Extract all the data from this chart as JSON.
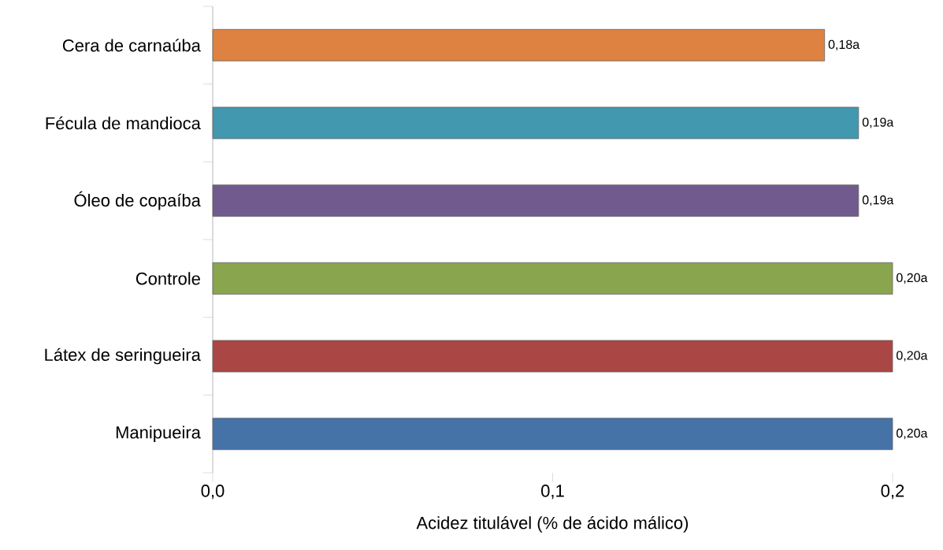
{
  "chart_data": {
    "type": "bar",
    "orientation": "horizontal",
    "categories": [
      "Cera de carnaúba",
      "Fécula de mandioca",
      "Óleo de copaíba",
      "Controle",
      "Látex de seringueira",
      "Manipueira"
    ],
    "values": [
      0.18,
      0.19,
      0.19,
      0.2,
      0.2,
      0.2
    ],
    "value_labels": [
      "0,18a",
      "0,19a",
      "0,19a",
      "0,20a",
      "0,20a",
      "0,20a"
    ],
    "colors": [
      "#dd8240",
      "#4298ae",
      "#715a8d",
      "#89a54e",
      "#aa4644",
      "#4572a7"
    ],
    "xlabel": "Acidez titulável (% de ácido málico)",
    "xlim": [
      0,
      0.2
    ],
    "xticks": [
      {
        "value": 0,
        "label": "0,0"
      },
      {
        "value": 0.1,
        "label": "0,1"
      },
      {
        "value": 0.2,
        "label": "0,2"
      }
    ],
    "grid": false
  }
}
